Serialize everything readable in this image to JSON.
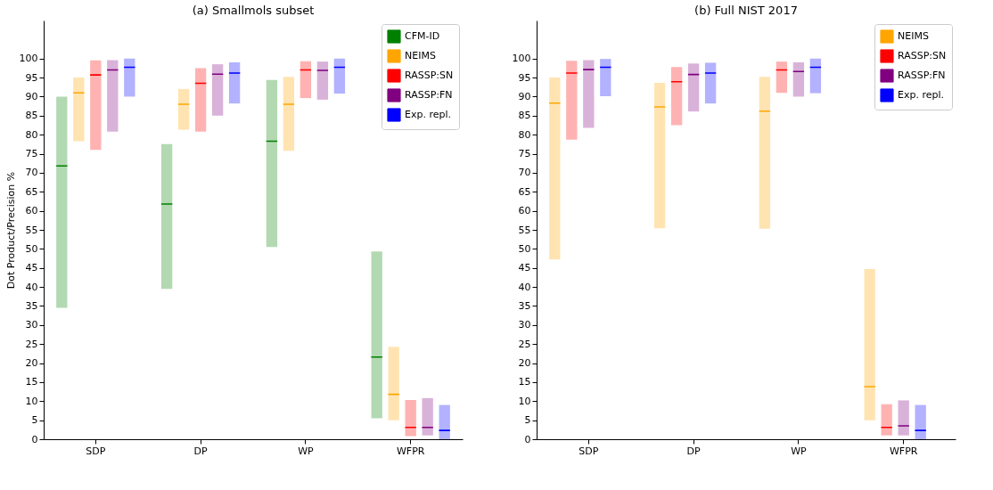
{
  "chart_data": [
    {
      "type": "box",
      "title": "(a) Smallmols subset",
      "ylabel": "Dot Product/Precision %",
      "categories": [
        "SDP",
        "DP",
        "WP",
        "WFPR"
      ],
      "ylim": [
        0,
        110
      ],
      "yticks": [
        0,
        5,
        10,
        15,
        20,
        25,
        30,
        35,
        40,
        45,
        50,
        55,
        60,
        65,
        70,
        75,
        80,
        85,
        90,
        95,
        100
      ],
      "legend": "top right",
      "series": [
        {
          "name": "CFM-ID",
          "color": "#008000",
          "boxes": [
            {
              "low": 34.5,
              "q1": 34.5,
              "median": 71.8,
              "q3": 90,
              "high": 90
            },
            {
              "low": 39.5,
              "q1": 39.5,
              "median": 61.8,
              "q3": 77.5,
              "high": 77.5
            },
            {
              "low": 50.5,
              "q1": 50.5,
              "median": 78.3,
              "q3": 94.4,
              "high": 94.4
            },
            {
              "low": 5.5,
              "q1": 5.5,
              "median": 21.6,
              "q3": 49.3,
              "high": 49.3
            }
          ]
        },
        {
          "name": "NEIMS",
          "color": "#ffa500",
          "boxes": [
            {
              "low": 78.3,
              "q1": 78.3,
              "median": 91,
              "q3": 95,
              "high": 95
            },
            {
              "low": 81.3,
              "q1": 81.3,
              "median": 88,
              "q3": 92,
              "high": 92
            },
            {
              "low": 75.8,
              "q1": 75.8,
              "median": 88,
              "q3": 95.2,
              "high": 95.2
            },
            {
              "low": 5,
              "q1": 5,
              "median": 11.8,
              "q3": 24.3,
              "high": 24.3
            }
          ]
        },
        {
          "name": "RASSP:SN",
          "color": "#ff0000",
          "boxes": [
            {
              "low": 76,
              "q1": 76,
              "median": 95.7,
              "q3": 99.5,
              "high": 99.5
            },
            {
              "low": 80.8,
              "q1": 80.8,
              "median": 93.5,
              "q3": 97.5,
              "high": 97.5
            },
            {
              "low": 89.6,
              "q1": 89.6,
              "median": 97,
              "q3": 99.3,
              "high": 99.3
            },
            {
              "low": 0.8,
              "q1": 0.8,
              "median": 3.1,
              "q3": 10.3,
              "high": 10.3
            }
          ]
        },
        {
          "name": "RASSP:FN",
          "color": "#800080",
          "boxes": [
            {
              "low": 80.8,
              "q1": 80.8,
              "median": 97,
              "q3": 99.6,
              "high": 99.6
            },
            {
              "low": 85,
              "q1": 85,
              "median": 95.9,
              "q3": 98.5,
              "high": 98.5
            },
            {
              "low": 89.2,
              "q1": 89.2,
              "median": 96.9,
              "q3": 99.2,
              "high": 99.2
            },
            {
              "low": 1,
              "q1": 1,
              "median": 3.1,
              "q3": 10.8,
              "high": 10.8
            }
          ]
        },
        {
          "name": "Exp. repl.",
          "color": "#0000ff",
          "boxes": [
            {
              "low": 90,
              "q1": 90,
              "median": 97.7,
              "q3": 100,
              "high": 100
            },
            {
              "low": 88.2,
              "q1": 88.2,
              "median": 96.2,
              "q3": 99,
              "high": 99
            },
            {
              "low": 90.8,
              "q1": 90.8,
              "median": 97.7,
              "q3": 100,
              "high": 100
            },
            {
              "low": 0,
              "q1": 0,
              "median": 2.3,
              "q3": 9,
              "high": 9
            }
          ]
        }
      ]
    },
    {
      "type": "box",
      "title": "(b) Full NIST 2017",
      "categories": [
        "SDP",
        "DP",
        "WP",
        "WFPR"
      ],
      "ylim": [
        0,
        110
      ],
      "yticks": [
        0,
        5,
        10,
        15,
        20,
        25,
        30,
        35,
        40,
        45,
        50,
        55,
        60,
        65,
        70,
        75,
        80,
        85,
        90,
        95,
        100
      ],
      "legend": "top right",
      "series": [
        {
          "name": "NEIMS",
          "color": "#ffa500",
          "boxes": [
            {
              "low": 47.2,
              "q1": 47.2,
              "median": 88.3,
              "q3": 95,
              "high": 95
            },
            {
              "low": 55.4,
              "q1": 55.4,
              "median": 87.3,
              "q3": 93.6,
              "high": 93.6
            },
            {
              "low": 55.3,
              "q1": 55.3,
              "median": 86.2,
              "q3": 95.2,
              "high": 95.2
            },
            {
              "low": 5,
              "q1": 5,
              "median": 13.8,
              "q3": 44.7,
              "high": 44.7
            }
          ]
        },
        {
          "name": "RASSP:SN",
          "color": "#ff0000",
          "boxes": [
            {
              "low": 78.7,
              "q1": 78.7,
              "median": 96.2,
              "q3": 99.4,
              "high": 99.4
            },
            {
              "low": 82.5,
              "q1": 82.5,
              "median": 93.9,
              "q3": 97.8,
              "high": 97.8
            },
            {
              "low": 91,
              "q1": 91,
              "median": 97,
              "q3": 99.2,
              "high": 99.2
            },
            {
              "low": 1,
              "q1": 1,
              "median": 3.1,
              "q3": 9.2,
              "high": 9.2
            }
          ]
        },
        {
          "name": "RASSP:FN",
          "color": "#800080",
          "boxes": [
            {
              "low": 81.8,
              "q1": 81.8,
              "median": 97.1,
              "q3": 99.6,
              "high": 99.6
            },
            {
              "low": 86.1,
              "q1": 86.1,
              "median": 95.8,
              "q3": 98.7,
              "high": 98.7
            },
            {
              "low": 90,
              "q1": 90,
              "median": 96.6,
              "q3": 99,
              "high": 99
            },
            {
              "low": 1,
              "q1": 1,
              "median": 3.5,
              "q3": 10.2,
              "high": 10.2
            }
          ]
        },
        {
          "name": "Exp. repl.",
          "color": "#0000ff",
          "boxes": [
            {
              "low": 90.1,
              "q1": 90.1,
              "median": 97.7,
              "q3": 99.9,
              "high": 99.9
            },
            {
              "low": 88.2,
              "q1": 88.2,
              "median": 96.2,
              "q3": 98.9,
              "high": 98.9
            },
            {
              "low": 90.9,
              "q1": 90.9,
              "median": 97.7,
              "q3": 100,
              "high": 100
            },
            {
              "low": 0,
              "q1": 0,
              "median": 2.3,
              "q3": 9,
              "high": 9
            }
          ]
        }
      ]
    }
  ]
}
